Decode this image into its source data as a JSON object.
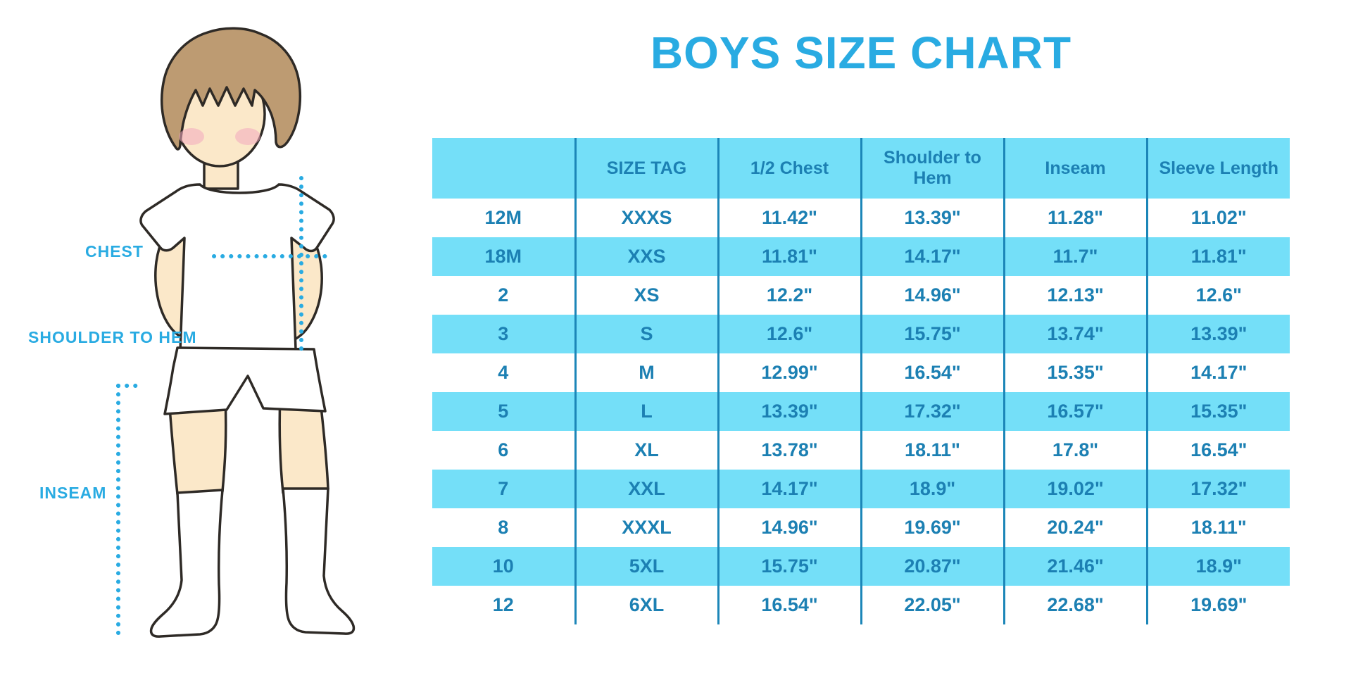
{
  "title": "BOYS SIZE CHART",
  "colors": {
    "accent_blue": "#29ABE2",
    "row_cyan": "#74DFF8",
    "table_text_blue": "#1C80B3",
    "column_divider_blue": "#1C86B8",
    "hair_brown": "#BD9B72",
    "skin": "#FBE8C9",
    "blush_pink": "#F2A8BD",
    "outline": "#2E2A26"
  },
  "figure": {
    "labels": {
      "chest": "CHEST",
      "shoulder_to_hem": "SHOULDER TO HEM",
      "inseam": "INSEAM"
    }
  },
  "chart_data": {
    "type": "table",
    "title": "BOYS SIZE CHART",
    "units": "inches",
    "columns": [
      "",
      "SIZE TAG",
      "1/2 Chest",
      "Shoulder to Hem",
      "Inseam",
      "Sleeve Length"
    ],
    "rows": [
      [
        "12M",
        "XXXS",
        "11.42\"",
        "13.39\"",
        "11.28\"",
        "11.02\""
      ],
      [
        "18M",
        "XXS",
        "11.81\"",
        "14.17\"",
        "11.7\"",
        "11.81\""
      ],
      [
        "2",
        "XS",
        "12.2\"",
        "14.96\"",
        "12.13\"",
        "12.6\""
      ],
      [
        "3",
        "S",
        "12.6\"",
        "15.75\"",
        "13.74\"",
        "13.39\""
      ],
      [
        "4",
        "M",
        "12.99\"",
        "16.54\"",
        "15.35\"",
        "14.17\""
      ],
      [
        "5",
        "L",
        "13.39\"",
        "17.32\"",
        "16.57\"",
        "15.35\""
      ],
      [
        "6",
        "XL",
        "13.78\"",
        "18.11\"",
        "17.8\"",
        "16.54\""
      ],
      [
        "7",
        "XXL",
        "14.17\"",
        "18.9\"",
        "19.02\"",
        "17.32\""
      ],
      [
        "8",
        "XXXL",
        "14.96\"",
        "19.69\"",
        "20.24\"",
        "18.11\""
      ],
      [
        "10",
        "5XL",
        "15.75\"",
        "20.87\"",
        "21.46\"",
        "18.9\""
      ],
      [
        "12",
        "6XL",
        "16.54\"",
        "22.05\"",
        "22.68\"",
        "19.69\""
      ]
    ],
    "row_striping": "alternating white / cyan, header cyan",
    "grid": "vertical column dividers only"
  }
}
